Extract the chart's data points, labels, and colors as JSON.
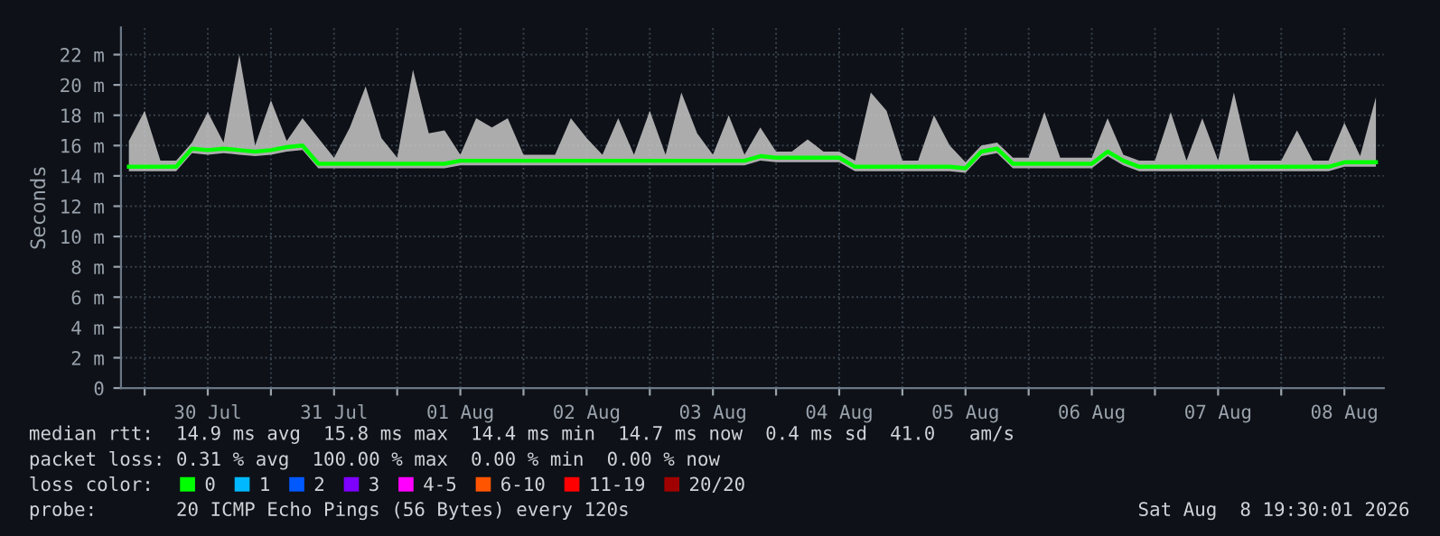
{
  "chart_data": {
    "type": "line",
    "ylabel": "Seconds",
    "legend_title": "loss color:",
    "legend": "bottom",
    "grid": true,
    "xlim": [
      "2026-07-29T19:30",
      "2026-08-08T19:30"
    ],
    "xticks": [
      {
        "value": "2026-07-30T00:00",
        "label": null
      },
      {
        "value": "2026-07-30T12:00",
        "label": "30 Jul"
      },
      {
        "value": "2026-07-31T00:00",
        "label": null
      },
      {
        "value": "2026-07-31T12:00",
        "label": "31 Jul"
      },
      {
        "value": "2026-08-01T00:00",
        "label": null
      },
      {
        "value": "2026-08-01T12:00",
        "label": "01 Aug"
      },
      {
        "value": "2026-08-02T00:00",
        "label": null
      },
      {
        "value": "2026-08-02T12:00",
        "label": "02 Aug"
      },
      {
        "value": "2026-08-03T00:00",
        "label": null
      },
      {
        "value": "2026-08-03T12:00",
        "label": "03 Aug"
      },
      {
        "value": "2026-08-04T00:00",
        "label": null
      },
      {
        "value": "2026-08-04T12:00",
        "label": "04 Aug"
      },
      {
        "value": "2026-08-05T00:00",
        "label": null
      },
      {
        "value": "2026-08-05T12:00",
        "label": "05 Aug"
      },
      {
        "value": "2026-08-06T00:00",
        "label": null
      },
      {
        "value": "2026-08-06T12:00",
        "label": "06 Aug"
      },
      {
        "value": "2026-08-07T00:00",
        "label": null
      },
      {
        "value": "2026-08-07T12:00",
        "label": "07 Aug"
      },
      {
        "value": "2026-08-08T00:00",
        "label": null
      },
      {
        "value": "2026-08-08T12:00",
        "label": "08 Aug"
      }
    ],
    "ylim": [
      0,
      23.8
    ],
    "yticks": [
      0,
      {
        "value": 2,
        "label": "2 m"
      },
      {
        "value": 4,
        "label": "4 m"
      },
      {
        "value": 6,
        "label": "6 m"
      },
      {
        "value": 8,
        "label": "8 m"
      },
      {
        "value": 10,
        "label": "10 m"
      },
      {
        "value": 12,
        "label": "12 m"
      },
      {
        "value": 14,
        "label": "14 m"
      },
      {
        "value": 16,
        "label": "16 m"
      },
      {
        "value": 18,
        "label": "18 m"
      },
      {
        "value": 20,
        "label": "20 m"
      },
      {
        "value": 22,
        "label": "22 m"
      }
    ],
    "x": [
      "2026-07-29T21:00",
      "2026-07-30T00:00",
      "2026-07-30T03:00",
      "2026-07-30T06:00",
      "2026-07-30T09:00",
      "2026-07-30T12:00",
      "2026-07-30T15:00",
      "2026-07-30T18:00",
      "2026-07-30T21:00",
      "2026-07-31T00:00",
      "2026-07-31T03:00",
      "2026-07-31T06:00",
      "2026-07-31T09:00",
      "2026-07-31T12:00",
      "2026-07-31T15:00",
      "2026-07-31T18:00",
      "2026-07-31T21:00",
      "2026-08-01T00:00",
      "2026-08-01T03:00",
      "2026-08-01T06:00",
      "2026-08-01T09:00",
      "2026-08-01T12:00",
      "2026-08-01T15:00",
      "2026-08-01T18:00",
      "2026-08-01T21:00",
      "2026-08-02T00:00",
      "2026-08-02T03:00",
      "2026-08-02T06:00",
      "2026-08-02T09:00",
      "2026-08-02T12:00",
      "2026-08-02T15:00",
      "2026-08-02T18:00",
      "2026-08-02T21:00",
      "2026-08-03T00:00",
      "2026-08-03T03:00",
      "2026-08-03T06:00",
      "2026-08-03T09:00",
      "2026-08-03T12:00",
      "2026-08-03T15:00",
      "2026-08-03T18:00",
      "2026-08-03T21:00",
      "2026-08-04T00:00",
      "2026-08-04T03:00",
      "2026-08-04T06:00",
      "2026-08-04T09:00",
      "2026-08-04T12:00",
      "2026-08-04T15:00",
      "2026-08-04T18:00",
      "2026-08-04T21:00",
      "2026-08-05T00:00",
      "2026-08-05T03:00",
      "2026-08-05T06:00",
      "2026-08-05T09:00",
      "2026-08-05T12:00",
      "2026-08-05T15:00",
      "2026-08-05T18:00",
      "2026-08-05T21:00",
      "2026-08-06T00:00",
      "2026-08-06T03:00",
      "2026-08-06T06:00",
      "2026-08-06T09:00",
      "2026-08-06T12:00",
      "2026-08-06T15:00",
      "2026-08-06T18:00",
      "2026-08-06T21:00",
      "2026-08-07T00:00",
      "2026-08-07T03:00",
      "2026-08-07T06:00",
      "2026-08-07T09:00",
      "2026-08-07T12:00",
      "2026-08-07T15:00",
      "2026-08-07T18:00",
      "2026-08-07T21:00",
      "2026-08-08T00:00",
      "2026-08-08T03:00",
      "2026-08-08T06:00",
      "2026-08-08T09:00",
      "2026-08-08T12:00",
      "2026-08-08T15:00",
      "2026-08-08T18:00"
    ],
    "series": [
      {
        "name": "0",
        "color": "#00ff00",
        "values": [
          14.6,
          14.6,
          14.6,
          14.6,
          15.8,
          15.7,
          15.8,
          15.7,
          15.6,
          15.7,
          15.9,
          16.0,
          14.8,
          14.8,
          14.8,
          14.8,
          14.8,
          14.8,
          14.8,
          14.8,
          14.8,
          15.0,
          15.0,
          15.0,
          15.0,
          15.0,
          15.0,
          15.0,
          15.0,
          15.0,
          15.0,
          15.0,
          15.0,
          15.0,
          15.0,
          15.0,
          15.0,
          15.0,
          15.0,
          15.0,
          15.3,
          15.2,
          15.2,
          15.2,
          15.2,
          15.2,
          14.6,
          14.6,
          14.6,
          14.6,
          14.6,
          14.6,
          14.6,
          14.5,
          15.6,
          15.8,
          14.8,
          14.8,
          14.8,
          14.8,
          14.8,
          14.8,
          15.6,
          15.0,
          14.6,
          14.6,
          14.6,
          14.6,
          14.6,
          14.6,
          14.6,
          14.6,
          14.6,
          14.6,
          14.6,
          14.6,
          14.6,
          14.9,
          14.9,
          14.9
        ],
        "lower": [
          14.3,
          14.3,
          14.3,
          14.3,
          15.5,
          15.4,
          15.5,
          15.4,
          15.3,
          15.4,
          15.6,
          15.7,
          14.5,
          14.5,
          14.5,
          14.5,
          14.5,
          14.5,
          14.5,
          14.5,
          14.5,
          14.7,
          14.7,
          14.7,
          14.7,
          14.7,
          14.7,
          14.7,
          14.7,
          14.7,
          14.7,
          14.7,
          14.7,
          14.7,
          14.7,
          14.7,
          14.7,
          14.7,
          14.7,
          14.7,
          15.0,
          14.9,
          14.9,
          14.9,
          14.9,
          14.9,
          14.3,
          14.3,
          14.3,
          14.3,
          14.3,
          14.3,
          14.3,
          14.2,
          15.3,
          15.5,
          14.5,
          14.5,
          14.5,
          14.5,
          14.5,
          14.5,
          15.3,
          14.7,
          14.3,
          14.3,
          14.3,
          14.3,
          14.3,
          14.3,
          14.3,
          14.3,
          14.3,
          14.3,
          14.3,
          14.3,
          14.3,
          14.6,
          14.6,
          14.6
        ],
        "upper": [
          16.3,
          18.3,
          15.0,
          15.0,
          16.2,
          18.2,
          16.2,
          22.0,
          16.0,
          19.0,
          16.3,
          17.8,
          16.5,
          15.2,
          17.2,
          19.9,
          16.5,
          15.2,
          21.0,
          16.8,
          17.0,
          15.4,
          17.8,
          17.2,
          17.8,
          15.4,
          15.4,
          15.4,
          17.8,
          16.5,
          15.4,
          17.8,
          15.4,
          18.3,
          15.4,
          19.5,
          16.8,
          15.4,
          18.0,
          15.4,
          17.2,
          15.6,
          15.6,
          16.4,
          15.6,
          15.6,
          15.0,
          19.5,
          18.3,
          15.0,
          15.0,
          18.0,
          16.0,
          14.9,
          16.0,
          16.2,
          15.2,
          15.2,
          18.2,
          15.2,
          15.2,
          15.2,
          17.8,
          15.4,
          15.0,
          15.0,
          18.2,
          15.0,
          17.8,
          15.0,
          19.5,
          15.0,
          15.0,
          15.0,
          17.0,
          15.0,
          15.0,
          17.5,
          15.3,
          19.2
        ]
      },
      {
        "name": "1",
        "color": "#00b8ff",
        "values": [
          null,
          null,
          null,
          null,
          null,
          null,
          null,
          null,
          null,
          null,
          null,
          null,
          null,
          null,
          null,
          null,
          null,
          null,
          null,
          null,
          null,
          null,
          null,
          null,
          null,
          null,
          null,
          null,
          null,
          null,
          null,
          null,
          null,
          null,
          null,
          null,
          null,
          null,
          null,
          null,
          null,
          null,
          null,
          null,
          null,
          null,
          null,
          null,
          null,
          null,
          null,
          null,
          null,
          null,
          null,
          null,
          null,
          null,
          null,
          null,
          null,
          null,
          null,
          null,
          null,
          null,
          null,
          null,
          null,
          null,
          null,
          null,
          null,
          null,
          null,
          null,
          null,
          null,
          null,
          null
        ]
      },
      {
        "name": "2",
        "color": "#0059ff",
        "values": [
          null,
          null,
          null,
          null,
          null,
          null,
          null,
          null,
          null,
          null,
          null,
          null,
          null,
          null,
          null,
          null,
          null,
          null,
          null,
          null,
          null,
          null,
          null,
          null,
          null,
          null,
          null,
          null,
          null,
          null,
          null,
          null,
          null,
          null,
          null,
          null,
          null,
          null,
          null,
          null,
          null,
          null,
          null,
          null,
          null,
          null,
          null,
          null,
          null,
          null,
          null,
          null,
          null,
          null,
          null,
          null,
          null,
          null,
          null,
          null,
          null,
          null,
          null,
          null,
          null,
          null,
          null,
          null,
          null,
          null,
          null,
          null,
          null,
          null,
          null,
          null,
          null,
          null,
          null,
          null
        ]
      },
      {
        "name": "3",
        "color": "#7e00ff",
        "values": [
          null,
          null,
          null,
          null,
          null,
          null,
          null,
          null,
          null,
          null,
          null,
          null,
          null,
          null,
          null,
          null,
          null,
          null,
          null,
          null,
          null,
          null,
          null,
          null,
          null,
          null,
          null,
          null,
          null,
          null,
          null,
          null,
          null,
          null,
          null,
          null,
          null,
          null,
          null,
          null,
          null,
          null,
          null,
          null,
          null,
          null,
          null,
          null,
          null,
          null,
          null,
          null,
          null,
          null,
          null,
          null,
          null,
          null,
          null,
          null,
          null,
          null,
          null,
          null,
          null,
          null,
          null,
          null,
          null,
          null,
          null,
          null,
          null,
          null,
          null,
          null,
          null,
          null,
          null,
          null
        ]
      },
      {
        "name": "4-5",
        "color": "#ff00ff",
        "values": [
          null,
          null,
          null,
          null,
          null,
          null,
          null,
          null,
          null,
          null,
          null,
          null,
          null,
          null,
          null,
          null,
          null,
          null,
          null,
          null,
          null,
          null,
          null,
          null,
          null,
          null,
          null,
          null,
          null,
          null,
          null,
          null,
          null,
          null,
          null,
          null,
          null,
          null,
          null,
          null,
          null,
          null,
          null,
          null,
          null,
          null,
          null,
          null,
          null,
          null,
          null,
          null,
          null,
          null,
          null,
          null,
          null,
          null,
          null,
          null,
          null,
          null,
          null,
          null,
          null,
          null,
          null,
          null,
          null,
          null,
          null,
          null,
          null,
          null,
          null,
          null,
          null,
          null,
          null,
          null
        ]
      },
      {
        "name": "6-10",
        "color": "#ff5500",
        "values": [
          null,
          null,
          null,
          null,
          null,
          null,
          null,
          null,
          null,
          null,
          null,
          null,
          null,
          null,
          null,
          null,
          null,
          null,
          null,
          null,
          null,
          null,
          null,
          null,
          null,
          null,
          null,
          null,
          null,
          null,
          null,
          null,
          null,
          null,
          null,
          null,
          null,
          null,
          null,
          null,
          null,
          null,
          null,
          null,
          null,
          null,
          null,
          null,
          null,
          null,
          null,
          null,
          null,
          null,
          null,
          null,
          null,
          null,
          null,
          null,
          null,
          null,
          null,
          null,
          null,
          null,
          null,
          null,
          null,
          null,
          null,
          null,
          null,
          null,
          null,
          null,
          null,
          null,
          null,
          null
        ]
      },
      {
        "name": "11-19",
        "color": "#ff0000",
        "values": [
          null,
          null,
          null,
          null,
          null,
          null,
          null,
          null,
          null,
          null,
          null,
          null,
          null,
          null,
          null,
          null,
          null,
          null,
          null,
          null,
          null,
          null,
          null,
          null,
          null,
          null,
          null,
          null,
          null,
          null,
          null,
          null,
          null,
          null,
          null,
          null,
          null,
          null,
          null,
          null,
          null,
          null,
          null,
          null,
          null,
          null,
          null,
          null,
          null,
          null,
          null,
          null,
          null,
          null,
          null,
          null,
          null,
          null,
          null,
          null,
          null,
          null,
          null,
          null,
          null,
          null,
          null,
          null,
          null,
          null,
          null,
          null,
          null,
          null,
          null,
          null,
          null,
          null,
          null,
          null
        ]
      },
      {
        "name": "20/20",
        "color": "#a10000",
        "values": [
          null,
          null,
          null,
          null,
          null,
          null,
          null,
          null,
          null,
          null,
          null,
          null,
          null,
          null,
          null,
          null,
          null,
          null,
          null,
          null,
          null,
          null,
          null,
          null,
          null,
          null,
          null,
          null,
          null,
          null,
          null,
          null,
          null,
          null,
          null,
          null,
          null,
          null,
          null,
          null,
          null,
          null,
          null,
          null,
          null,
          null,
          null,
          null,
          null,
          null,
          null,
          null,
          null,
          null,
          null,
          null,
          null,
          null,
          null,
          null,
          null,
          null,
          null,
          null,
          null,
          null,
          null,
          null,
          null,
          null,
          null,
          null,
          null,
          null,
          null,
          null,
          null,
          null,
          null,
          null
        ]
      }
    ],
    "annotations": [
      "median rtt:  14.9 ms avg  15.8 ms max  14.4 ms min  14.7 ms now  0.4 ms sd  41.0   am/s",
      "packet loss: 0.31 % avg  100.00 % max  0.00 % min  0.00 % now",
      "probe:       20 ICMP Echo Pings (56 Bytes) every 120s",
      "Sat Aug  8 19:30:01 2026"
    ]
  }
}
